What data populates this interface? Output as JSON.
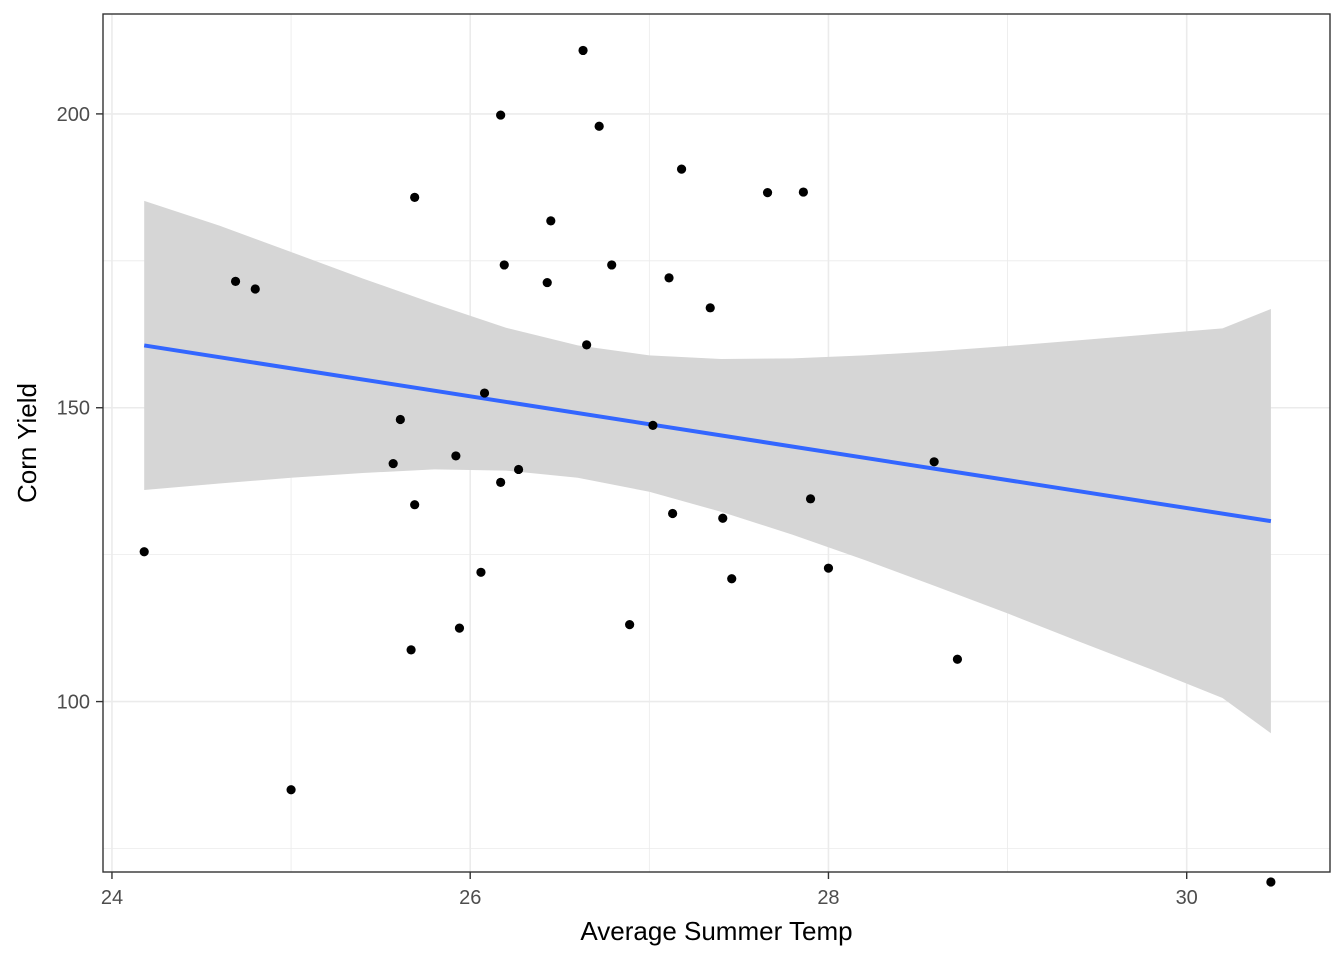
{
  "chart_data": {
    "type": "scatter",
    "title": "",
    "xlabel": "Average Summer Temp",
    "ylabel": "Corn Yield",
    "xlim": [
      23.95,
      30.8
    ],
    "ylim": [
      71,
      217
    ],
    "x_ticks": [
      24,
      26,
      28,
      30
    ],
    "y_ticks": [
      100,
      150,
      200
    ],
    "x_tick_labels": [
      "24",
      "26",
      "28",
      "30"
    ],
    "y_tick_labels": [
      "100",
      "150",
      "200"
    ],
    "grid": true,
    "points": [
      {
        "x": 24.18,
        "y": 125.5
      },
      {
        "x": 24.69,
        "y": 171.5
      },
      {
        "x": 24.8,
        "y": 170.2
      },
      {
        "x": 25.0,
        "y": 85.0
      },
      {
        "x": 25.57,
        "y": 140.5
      },
      {
        "x": 25.61,
        "y": 148.0
      },
      {
        "x": 25.67,
        "y": 108.8
      },
      {
        "x": 25.69,
        "y": 185.8
      },
      {
        "x": 25.69,
        "y": 133.5
      },
      {
        "x": 25.92,
        "y": 141.8
      },
      {
        "x": 25.94,
        "y": 112.5
      },
      {
        "x": 26.06,
        "y": 122.0
      },
      {
        "x": 26.08,
        "y": 152.5
      },
      {
        "x": 26.17,
        "y": 199.8
      },
      {
        "x": 26.17,
        "y": 137.3
      },
      {
        "x": 26.19,
        "y": 174.3
      },
      {
        "x": 26.27,
        "y": 139.5
      },
      {
        "x": 26.43,
        "y": 171.3
      },
      {
        "x": 26.45,
        "y": 181.8
      },
      {
        "x": 26.63,
        "y": 210.8
      },
      {
        "x": 26.65,
        "y": 160.7
      },
      {
        "x": 26.72,
        "y": 197.9
      },
      {
        "x": 26.79,
        "y": 174.3
      },
      {
        "x": 26.89,
        "y": 113.1
      },
      {
        "x": 27.02,
        "y": 147.0
      },
      {
        "x": 27.11,
        "y": 172.1
      },
      {
        "x": 27.13,
        "y": 132.0
      },
      {
        "x": 27.18,
        "y": 190.6
      },
      {
        "x": 27.34,
        "y": 167.0
      },
      {
        "x": 27.41,
        "y": 131.2
      },
      {
        "x": 27.46,
        "y": 120.9
      },
      {
        "x": 27.66,
        "y": 186.6
      },
      {
        "x": 27.86,
        "y": 186.7
      },
      {
        "x": 27.9,
        "y": 134.5
      },
      {
        "x": 28.0,
        "y": 122.7
      },
      {
        "x": 28.59,
        "y": 140.8
      },
      {
        "x": 28.72,
        "y": 107.2
      },
      {
        "x": 30.47,
        "y": 69.3
      }
    ],
    "fit_line": {
      "x": [
        24.18,
        30.47
      ],
      "y": [
        160.6,
        130.7
      ]
    },
    "confidence_band": [
      {
        "x": 24.18,
        "lower": 136.0,
        "upper": 185.2
      },
      {
        "x": 24.6,
        "lower": 137.1,
        "upper": 181.0
      },
      {
        "x": 25.0,
        "lower": 138.1,
        "upper": 176.5
      },
      {
        "x": 25.4,
        "lower": 138.9,
        "upper": 172.0
      },
      {
        "x": 25.8,
        "lower": 139.5,
        "upper": 167.7
      },
      {
        "x": 26.2,
        "lower": 139.3,
        "upper": 163.6
      },
      {
        "x": 26.6,
        "lower": 138.1,
        "upper": 160.6
      },
      {
        "x": 27.0,
        "lower": 135.7,
        "upper": 158.9
      },
      {
        "x": 27.4,
        "lower": 132.3,
        "upper": 158.3
      },
      {
        "x": 27.8,
        "lower": 128.4,
        "upper": 158.4
      },
      {
        "x": 28.2,
        "lower": 124.1,
        "upper": 158.9
      },
      {
        "x": 28.6,
        "lower": 119.6,
        "upper": 159.6
      },
      {
        "x": 29.0,
        "lower": 115.0,
        "upper": 160.5
      },
      {
        "x": 29.4,
        "lower": 110.2,
        "upper": 161.5
      },
      {
        "x": 29.8,
        "lower": 105.5,
        "upper": 162.5
      },
      {
        "x": 30.2,
        "lower": 100.6,
        "upper": 163.5
      },
      {
        "x": 30.47,
        "lower": 94.6,
        "upper": 166.8
      }
    ],
    "colors": {
      "points": "#000000",
      "fit_line": "#3366ff",
      "band": "#d6d6d6",
      "grid": "#ebebeb",
      "panel_border": "#333333"
    }
  }
}
